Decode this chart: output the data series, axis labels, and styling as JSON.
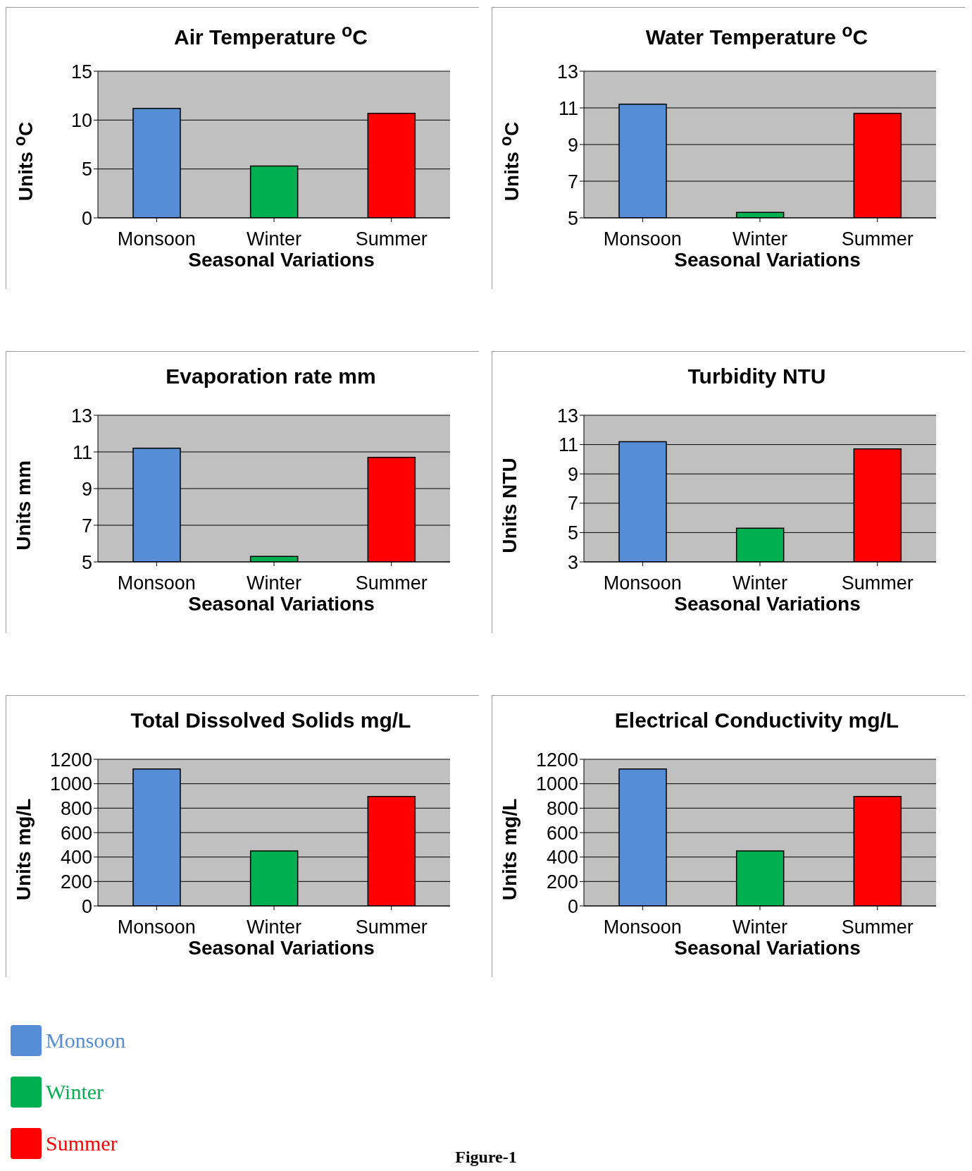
{
  "chart_data": [
    {
      "type": "bar",
      "title": "Air Temperature $^{o}$C",
      "xlabel": "Seasonal Variations",
      "ylabel": "Units $^{o}$C",
      "categories": [
        "Monsoon",
        "Winter",
        "Summer"
      ],
      "stacked": true,
      "ylim": [
        0,
        15
      ],
      "yticks": [
        0,
        5,
        10,
        15
      ],
      "grid": "y",
      "series": [
        {
          "color": "#558ed5",
          "values": [
            11.2,
            null,
            null
          ]
        },
        {
          "color": "#00b050",
          "values": [
            null,
            5.3,
            null
          ]
        },
        {
          "color": "#ff0000",
          "values": [
            null,
            null,
            10.7
          ]
        }
      ]
    },
    {
      "type": "bar",
      "title": "Water Temperature $^{o}$C",
      "xlabel": "Seasonal Variations",
      "ylabel": "Units $^{o}$C",
      "categories": [
        "Monsoon",
        "Winter",
        "Summer"
      ],
      "stacked": true,
      "ylim": [
        5,
        13
      ],
      "yticks": [
        5,
        7,
        9,
        11,
        13
      ],
      "grid": "y",
      "series": [
        {
          "color": "#558ed5",
          "values": [
            11.2,
            null,
            null
          ]
        },
        {
          "color": "#00b050",
          "values": [
            null,
            5.3,
            null
          ]
        },
        {
          "color": "#ff0000",
          "values": [
            null,
            null,
            10.7
          ]
        }
      ]
    },
    {
      "type": "bar",
      "title": "Evaporation rate mm",
      "xlabel": "Seasonal Variations",
      "ylabel": "Units mm",
      "categories": [
        "Monsoon",
        "Winter",
        "Summer"
      ],
      "stacked": true,
      "ylim": [
        5,
        13
      ],
      "yticks": [
        5,
        7,
        9,
        11,
        13
      ],
      "grid": "y",
      "series": [
        {
          "color": "#558ed5",
          "values": [
            11.2,
            null,
            null
          ]
        },
        {
          "color": "#00b050",
          "values": [
            null,
            5.3,
            null
          ]
        },
        {
          "color": "#ff0000",
          "values": [
            null,
            null,
            10.7
          ]
        }
      ]
    },
    {
      "type": "bar",
      "title": "Turbidity NTU",
      "xlabel": "Seasonal Variations",
      "ylabel": "Units NTU",
      "categories": [
        "Monsoon",
        "Winter",
        "Summer"
      ],
      "stacked": true,
      "ylim": [
        3,
        13
      ],
      "yticks": [
        3,
        5,
        7,
        9,
        11,
        13
      ],
      "grid": "y",
      "series": [
        {
          "color": "#558ed5",
          "values": [
            11.2,
            null,
            null
          ]
        },
        {
          "color": "#00b050",
          "values": [
            null,
            5.3,
            null
          ]
        },
        {
          "color": "#ff0000",
          "values": [
            null,
            null,
            10.7
          ]
        }
      ]
    },
    {
      "type": "bar",
      "title": "Total Dissolved Solids mg/L",
      "xlabel": "Seasonal Variations",
      "ylabel": "Units mg/L",
      "categories": [
        "Monsoon",
        "Winter",
        "Summer"
      ],
      "stacked": true,
      "ylim": [
        0,
        1200
      ],
      "yticks": [
        0,
        200,
        400,
        600,
        800,
        1000,
        1200
      ],
      "grid": "y",
      "series": [
        {
          "color": "#558ed5",
          "values": [
            1120,
            null,
            null
          ]
        },
        {
          "color": "#00b050",
          "values": [
            null,
            450,
            null
          ]
        },
        {
          "color": "#ff0000",
          "values": [
            null,
            null,
            895
          ]
        }
      ]
    },
    {
      "type": "bar",
      "title": "Electrical Conductivity mg/L",
      "xlabel": "Seasonal Variations",
      "ylabel": "Units mg/L",
      "categories": [
        "Monsoon",
        "Winter",
        "Summer"
      ],
      "stacked": true,
      "ylim": [
        0,
        1200
      ],
      "yticks": [
        0,
        200,
        400,
        600,
        800,
        1000,
        1200
      ],
      "grid": "y",
      "legend": "bottom left",
      "annotations": [
        "Figure-1"
      ],
      "series": [
        {
          "name": "Monsoon",
          "color": "#558ed5",
          "values": [
            1120,
            null,
            null
          ]
        },
        {
          "name": "Winter",
          "color": "#00b050",
          "values": [
            null,
            450,
            null
          ]
        },
        {
          "name": "Summer",
          "color": "#ff0000",
          "values": [
            null,
            null,
            895
          ]
        }
      ]
    }
  ]
}
